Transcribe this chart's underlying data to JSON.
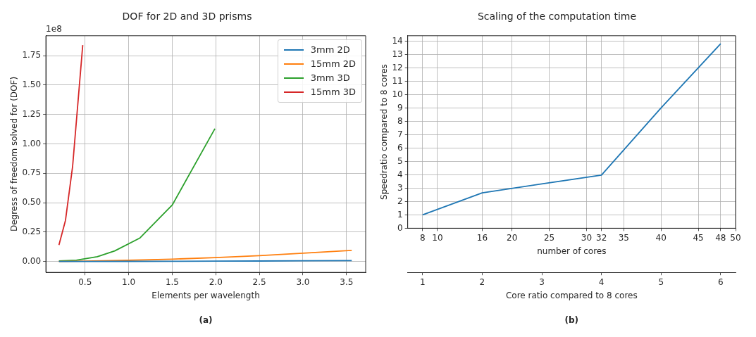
{
  "chart_data": [
    {
      "type": "line",
      "title": "DOF for 2D and 3D prisms",
      "xlabel": "Elements per wavelength",
      "ylabel": "Degress of freedom solved for (DOF)",
      "xlim": [
        0.05,
        3.72
      ],
      "xticks": [
        {
          "value": 0.5,
          "label": "0.5"
        },
        {
          "value": 1,
          "label": "1.0"
        },
        {
          "value": 1.5,
          "label": "1.5"
        },
        {
          "value": 2,
          "label": "2.0"
        },
        {
          "value": 2.5,
          "label": "2.5"
        },
        {
          "value": 3,
          "label": "3.0"
        },
        {
          "value": 3.5,
          "label": "3.5"
        }
      ],
      "ylim": [
        -0.093,
        1.92
      ],
      "yticks": [
        {
          "value": 0,
          "label": "0.00"
        },
        {
          "value": 0.25,
          "label": "0.25"
        },
        {
          "value": 0.5,
          "label": "0.50"
        },
        {
          "value": 0.75,
          "label": "0.75"
        },
        {
          "value": 1,
          "label": "1.00"
        },
        {
          "value": 1.25,
          "label": "1.25"
        },
        {
          "value": 1.5,
          "label": "1.50"
        },
        {
          "value": 1.75,
          "label": "1.75"
        }
      ],
      "grid": true,
      "legend": "top right",
      "marker": "none",
      "annotations": [
        "1e8",
        "(a)"
      ],
      "series": [
        {
          "name": "3mm 2D",
          "color": "#1f77b4",
          "x": [
            0.2,
            0.5,
            1.0,
            1.5,
            2.0,
            2.5,
            3.0,
            3.56
          ],
          "values": [
            0.0,
            0.0,
            0.001,
            0.002,
            0.003,
            0.004,
            0.006,
            0.008
          ]
        },
        {
          "name": "15mm 2D",
          "color": "#ff7f0e",
          "x": [
            0.2,
            0.5,
            1.0,
            1.5,
            2.0,
            2.5,
            3.0,
            3.56
          ],
          "values": [
            0.0,
            0.003,
            0.01,
            0.02,
            0.033,
            0.05,
            0.07,
            0.095
          ]
        },
        {
          "name": "3mm 3D",
          "color": "#2ca02c",
          "x": [
            0.2,
            0.4,
            0.47,
            0.64,
            0.84,
            1.13,
            1.5,
            1.99
          ],
          "values": [
            0.005,
            0.01,
            0.02,
            0.04,
            0.09,
            0.2,
            0.48,
            1.13
          ]
        },
        {
          "name": "15mm 3D",
          "color": "#d62728",
          "x": [
            0.2,
            0.275,
            0.357,
            0.473
          ],
          "values": [
            0.14,
            0.35,
            0.81,
            1.84
          ]
        }
      ]
    },
    {
      "type": "line",
      "title": "Scaling of the computation time",
      "xlabel": "number of cores",
      "ylabel": "Speedratio compared to 8 cores",
      "x2label": "Core ratio compared to 8 cores",
      "xlim": [
        6,
        50
      ],
      "xticks": [
        8,
        10,
        16,
        20,
        25,
        30,
        32,
        35,
        40,
        45,
        48,
        50
      ],
      "ylim": [
        0,
        14.4
      ],
      "yticks": [
        0,
        1,
        2,
        3,
        4,
        5,
        6,
        7,
        8,
        9,
        10,
        11,
        12,
        13,
        14
      ],
      "x2lim": [
        0.75,
        6.25
      ],
      "x2ticks": [
        1,
        2,
        3,
        4,
        5,
        6
      ],
      "grid": true,
      "marker": "none",
      "annotations": [
        "(b)"
      ],
      "series": [
        {
          "color": "#1f77b4",
          "x": [
            8,
            16,
            24,
            32,
            40,
            48
          ],
          "values": [
            1,
            2.65,
            3.32,
            3.97,
            9.0,
            13.8
          ]
        }
      ]
    }
  ]
}
